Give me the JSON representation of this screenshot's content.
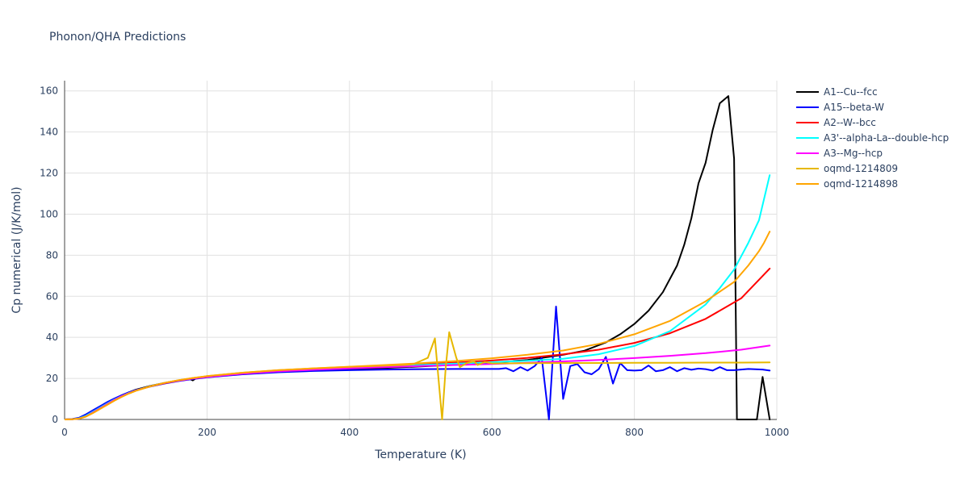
{
  "chart_data": {
    "type": "line",
    "title": "Phonon/QHA Predictions",
    "xlabel": "Temperature (K)",
    "ylabel": "Cp numerical (J/K/mol)",
    "xlim": [
      0,
      1000
    ],
    "ylim": [
      0,
      165
    ],
    "xticks": [
      0,
      200,
      400,
      600,
      800,
      1000
    ],
    "yticks": [
      0,
      20,
      40,
      60,
      80,
      100,
      120,
      140,
      160
    ],
    "grid": true,
    "legend_position": "right",
    "series": [
      {
        "name": "A1--Cu--fcc",
        "color": "#000000",
        "points": [
          [
            0,
            0
          ],
          [
            10,
            0.1
          ],
          [
            20,
            0.5
          ],
          [
            30,
            2
          ],
          [
            40,
            4
          ],
          [
            50,
            6
          ],
          [
            60,
            8
          ],
          [
            70,
            10
          ],
          [
            80,
            11.8
          ],
          [
            90,
            13.2
          ],
          [
            100,
            14.5
          ],
          [
            120,
            16.3
          ],
          [
            140,
            17.8
          ],
          [
            160,
            19
          ],
          [
            175,
            19.8
          ],
          [
            180,
            19
          ],
          [
            185,
            20.2
          ],
          [
            200,
            21
          ],
          [
            250,
            22.3
          ],
          [
            300,
            23.2
          ],
          [
            350,
            23.9
          ],
          [
            400,
            24.5
          ],
          [
            450,
            25.1
          ],
          [
            500,
            25.8
          ],
          [
            550,
            26.6
          ],
          [
            600,
            27.6
          ],
          [
            650,
            29
          ],
          [
            700,
            31.5
          ],
          [
            730,
            33.5
          ],
          [
            760,
            37.5
          ],
          [
            780,
            41.5
          ],
          [
            800,
            46.5
          ],
          [
            820,
            53
          ],
          [
            840,
            62
          ],
          [
            860,
            75
          ],
          [
            870,
            85
          ],
          [
            880,
            98
          ],
          [
            890,
            115
          ],
          [
            900,
            125
          ],
          [
            910,
            141
          ],
          [
            920,
            154
          ],
          [
            932,
            157.5
          ],
          [
            940,
            127
          ],
          [
            944,
            0
          ],
          [
            972,
            0
          ],
          [
            980,
            20.7
          ],
          [
            990,
            0
          ]
        ]
      },
      {
        "name": "A15--beta-W",
        "color": "#0000ff",
        "points": [
          [
            0,
            0
          ],
          [
            10,
            0.2
          ],
          [
            20,
            0.8
          ],
          [
            30,
            2.5
          ],
          [
            40,
            4.5
          ],
          [
            50,
            6.5
          ],
          [
            60,
            8.5
          ],
          [
            70,
            10.2
          ],
          [
            80,
            11.8
          ],
          [
            90,
            13.2
          ],
          [
            100,
            14.3
          ],
          [
            120,
            16
          ],
          [
            140,
            17.5
          ],
          [
            160,
            18.7
          ],
          [
            180,
            19.7
          ],
          [
            200,
            20.5
          ],
          [
            250,
            22
          ],
          [
            300,
            23
          ],
          [
            350,
            23.6
          ],
          [
            400,
            24
          ],
          [
            450,
            24.3
          ],
          [
            500,
            24.5
          ],
          [
            550,
            24.6
          ],
          [
            600,
            24.6
          ],
          [
            610,
            24.6
          ],
          [
            620,
            25
          ],
          [
            630,
            23.5
          ],
          [
            640,
            25.5
          ],
          [
            650,
            23.8
          ],
          [
            660,
            26
          ],
          [
            670,
            30
          ],
          [
            680,
            0
          ],
          [
            690,
            55
          ],
          [
            700,
            10
          ],
          [
            710,
            26
          ],
          [
            720,
            27
          ],
          [
            730,
            23
          ],
          [
            740,
            22
          ],
          [
            750,
            24.5
          ],
          [
            760,
            30.5
          ],
          [
            770,
            17.5
          ],
          [
            780,
            27.5
          ],
          [
            790,
            24
          ],
          [
            800,
            23.8
          ],
          [
            810,
            24
          ],
          [
            820,
            26.3
          ],
          [
            830,
            23.5
          ],
          [
            840,
            24
          ],
          [
            850,
            25.5
          ],
          [
            860,
            23.5
          ],
          [
            870,
            25
          ],
          [
            880,
            24.2
          ],
          [
            890,
            24.8
          ],
          [
            900,
            24.5
          ],
          [
            910,
            23.8
          ],
          [
            920,
            25.5
          ],
          [
            930,
            24
          ],
          [
            940,
            24
          ],
          [
            960,
            24.6
          ],
          [
            980,
            24.3
          ],
          [
            990,
            23.8
          ]
        ]
      },
      {
        "name": "A2--W--bcc",
        "color": "#ff0000",
        "points": [
          [
            0,
            0
          ],
          [
            10,
            0.1
          ],
          [
            20,
            0.4
          ],
          [
            30,
            1.5
          ],
          [
            40,
            3.5
          ],
          [
            50,
            5.5
          ],
          [
            60,
            7.5
          ],
          [
            70,
            9.5
          ],
          [
            80,
            11.3
          ],
          [
            90,
            12.8
          ],
          [
            100,
            14.1
          ],
          [
            120,
            16.1
          ],
          [
            140,
            17.6
          ],
          [
            160,
            18.9
          ],
          [
            180,
            19.9
          ],
          [
            200,
            20.7
          ],
          [
            250,
            22.4
          ],
          [
            300,
            23.6
          ],
          [
            350,
            24.5
          ],
          [
            400,
            25.3
          ],
          [
            450,
            26
          ],
          [
            500,
            26.8
          ],
          [
            550,
            27.7
          ],
          [
            600,
            28.7
          ],
          [
            650,
            30
          ],
          [
            700,
            31.7
          ],
          [
            750,
            34
          ],
          [
            800,
            37.3
          ],
          [
            850,
            42
          ],
          [
            900,
            49
          ],
          [
            950,
            59
          ],
          [
            990,
            73.5
          ]
        ]
      },
      {
        "name": "A3'--alpha-La--double-hcp",
        "color": "#00ffff",
        "points": [
          [
            0,
            0
          ],
          [
            10,
            0.1
          ],
          [
            20,
            0.5
          ],
          [
            30,
            1.8
          ],
          [
            40,
            3.8
          ],
          [
            50,
            5.8
          ],
          [
            60,
            7.8
          ],
          [
            70,
            9.7
          ],
          [
            80,
            11.4
          ],
          [
            90,
            12.9
          ],
          [
            100,
            14.2
          ],
          [
            120,
            16.2
          ],
          [
            140,
            17.8
          ],
          [
            160,
            19
          ],
          [
            180,
            20
          ],
          [
            200,
            20.8
          ],
          [
            250,
            22.4
          ],
          [
            300,
            23.5
          ],
          [
            350,
            24.4
          ],
          [
            400,
            25.1
          ],
          [
            450,
            25.8
          ],
          [
            500,
            26.5
          ],
          [
            550,
            27.2
          ],
          [
            600,
            27.9
          ],
          [
            650,
            28.6
          ],
          [
            700,
            29.6
          ],
          [
            750,
            31.8
          ],
          [
            800,
            35.8
          ],
          [
            850,
            43
          ],
          [
            900,
            56
          ],
          [
            920,
            64
          ],
          [
            940,
            73
          ],
          [
            960,
            86
          ],
          [
            975,
            97
          ],
          [
            990,
            119
          ]
        ]
      },
      {
        "name": "A3--Mg--hcp",
        "color": "#ff00ff",
        "points": [
          [
            0,
            0
          ],
          [
            10,
            0.1
          ],
          [
            20,
            0.4
          ],
          [
            30,
            1.5
          ],
          [
            40,
            3.5
          ],
          [
            50,
            5.5
          ],
          [
            60,
            7.5
          ],
          [
            70,
            9.5
          ],
          [
            80,
            11.3
          ],
          [
            90,
            12.8
          ],
          [
            100,
            14.1
          ],
          [
            120,
            16.1
          ],
          [
            140,
            17.7
          ],
          [
            160,
            18.9
          ],
          [
            180,
            19.9
          ],
          [
            200,
            20.7
          ],
          [
            250,
            22.3
          ],
          [
            300,
            23.4
          ],
          [
            350,
            24.2
          ],
          [
            400,
            24.9
          ],
          [
            450,
            25.5
          ],
          [
            500,
            26
          ],
          [
            550,
            26.5
          ],
          [
            600,
            27
          ],
          [
            650,
            27.6
          ],
          [
            700,
            28.3
          ],
          [
            750,
            29
          ],
          [
            800,
            29.9
          ],
          [
            850,
            31
          ],
          [
            900,
            32.3
          ],
          [
            950,
            34
          ],
          [
            990,
            36
          ]
        ]
      },
      {
        "name": "oqmd-1214809",
        "color": "#e6b800",
        "points": [
          [
            0,
            0
          ],
          [
            10,
            0.1
          ],
          [
            20,
            0.4
          ],
          [
            30,
            1.4
          ],
          [
            40,
            3.2
          ],
          [
            50,
            5.2
          ],
          [
            60,
            7.2
          ],
          [
            70,
            9.2
          ],
          [
            80,
            11
          ],
          [
            90,
            12.6
          ],
          [
            100,
            14
          ],
          [
            120,
            16.1
          ],
          [
            140,
            17.8
          ],
          [
            160,
            19.1
          ],
          [
            180,
            20.2
          ],
          [
            200,
            21.1
          ],
          [
            250,
            22.8
          ],
          [
            300,
            24
          ],
          [
            350,
            24.9
          ],
          [
            400,
            25.6
          ],
          [
            450,
            26.2
          ],
          [
            480,
            26.6
          ],
          [
            490,
            27
          ],
          [
            500,
            28.5
          ],
          [
            510,
            30
          ],
          [
            520,
            39.5
          ],
          [
            525,
            20
          ],
          [
            530,
            0
          ],
          [
            535,
            25
          ],
          [
            540,
            42.5
          ],
          [
            550,
            30
          ],
          [
            555,
            25.5
          ],
          [
            565,
            27.5
          ],
          [
            575,
            28.3
          ],
          [
            580,
            26.5
          ],
          [
            590,
            28
          ],
          [
            600,
            27.3
          ],
          [
            650,
            27.4
          ],
          [
            700,
            27.5
          ],
          [
            750,
            27.5
          ],
          [
            800,
            27.6
          ],
          [
            850,
            27.6
          ],
          [
            900,
            27.7
          ],
          [
            950,
            27.7
          ],
          [
            990,
            27.8
          ]
        ]
      },
      {
        "name": "oqmd-1214898",
        "color": "#ffa500",
        "points": [
          [
            0,
            0
          ],
          [
            10,
            0.1
          ],
          [
            20,
            0.4
          ],
          [
            30,
            1.4
          ],
          [
            40,
            3.2
          ],
          [
            50,
            5.2
          ],
          [
            60,
            7.2
          ],
          [
            70,
            9.2
          ],
          [
            80,
            11
          ],
          [
            90,
            12.6
          ],
          [
            100,
            14
          ],
          [
            120,
            16.1
          ],
          [
            140,
            17.8
          ],
          [
            160,
            19.1
          ],
          [
            180,
            20.2
          ],
          [
            200,
            21.1
          ],
          [
            250,
            22.8
          ],
          [
            300,
            24
          ],
          [
            350,
            24.9
          ],
          [
            400,
            25.7
          ],
          [
            450,
            26.5
          ],
          [
            500,
            27.4
          ],
          [
            550,
            28.5
          ],
          [
            600,
            29.8
          ],
          [
            650,
            31.5
          ],
          [
            700,
            33.6
          ],
          [
            750,
            36.8
          ],
          [
            800,
            41.5
          ],
          [
            850,
            48
          ],
          [
            900,
            57.5
          ],
          [
            940,
            67
          ],
          [
            960,
            75
          ],
          [
            975,
            82
          ],
          [
            982,
            86
          ],
          [
            990,
            91.5
          ]
        ]
      }
    ]
  }
}
